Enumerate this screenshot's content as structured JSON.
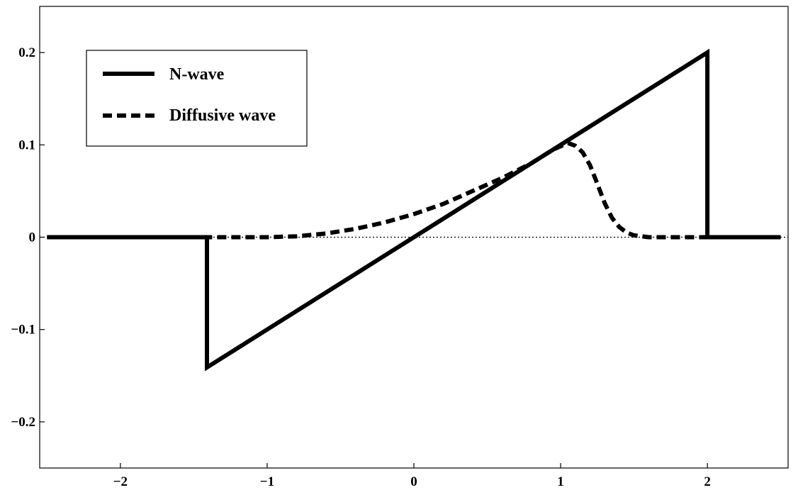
{
  "chart_data": {
    "type": "line",
    "title": "",
    "xlabel": "",
    "ylabel": "",
    "xlim": [
      -2.55,
      2.55
    ],
    "ylim": [
      -0.25,
      0.25
    ],
    "grid": false,
    "legend_position": "top-left",
    "xticks": [
      -2,
      -1,
      0,
      1,
      2
    ],
    "xtick_labels": [
      "−2",
      "−1",
      "0",
      "1",
      "2"
    ],
    "yticks": [
      0.2,
      0.1,
      0,
      -0.1,
      -0.2
    ],
    "ytick_labels": [
      "0.2",
      "0.1",
      "0",
      "−0.1",
      "−0.2"
    ],
    "zero_line": {
      "y": 0,
      "style": "dotted"
    },
    "series": [
      {
        "name": "N-wave",
        "style": "solid",
        "color": "#000000",
        "x": [
          -2.5,
          -1.41,
          -1.41,
          2.0,
          2.0,
          2.5
        ],
        "y": [
          0,
          0,
          -0.141,
          0.2,
          0,
          0
        ]
      },
      {
        "name": "Diffusive wave",
        "style": "dashed",
        "color": "#000000",
        "x": [
          -2.5,
          -1.0,
          -0.8,
          -0.6,
          -0.4,
          -0.2,
          0.0,
          0.2,
          0.4,
          0.6,
          0.8,
          0.95,
          1.05,
          1.1,
          1.15,
          1.2,
          1.25,
          1.3,
          1.35,
          1.4,
          1.45,
          1.5,
          1.6,
          2.0,
          2.5
        ],
        "y": [
          0,
          0,
          0.001,
          0.004,
          0.009,
          0.016,
          0.025,
          0.036,
          0.05,
          0.064,
          0.08,
          0.095,
          0.102,
          0.099,
          0.092,
          0.078,
          0.058,
          0.037,
          0.021,
          0.011,
          0.005,
          0.002,
          0.0,
          0,
          0
        ]
      }
    ]
  }
}
